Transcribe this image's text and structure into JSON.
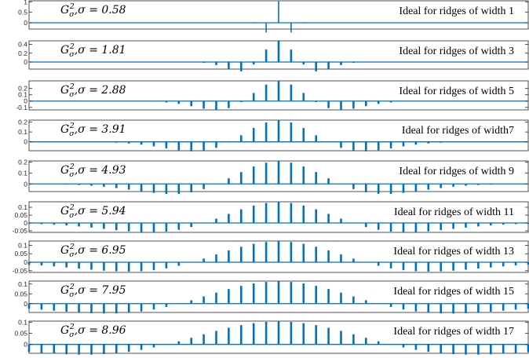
{
  "chart_data": [
    {
      "type": "stem",
      "sigma_label": {
        "symbol": "G",
        "sub": "σ",
        "sup": "2",
        "rest": ",σ = 0.58"
      },
      "annotation": "Ideal for ridges of width 1",
      "sigma": 0.58,
      "x": [
        -20,
        20
      ],
      "ylim": [
        -0.3,
        1.05
      ],
      "yticks": [
        {
          "label": "1",
          "value": 1
        },
        {
          "label": "0.5",
          "value": 0.5
        },
        {
          "label": "0",
          "value": 0
        }
      ],
      "color": "#0072BD"
    },
    {
      "type": "stem",
      "sigma_label": {
        "symbol": "G",
        "sub": "σ",
        "sup": "2",
        "rest": ",σ = 1.81"
      },
      "annotation": "Ideal for ridges of width 3",
      "sigma": 1.81,
      "x": [
        -20,
        20
      ],
      "ylim": [
        -0.16,
        0.48
      ],
      "yticks": [
        {
          "label": "0.4",
          "value": 0.4
        },
        {
          "label": "0.2",
          "value": 0.2
        },
        {
          "label": "0",
          "value": 0
        }
      ],
      "color": "#0072BD"
    },
    {
      "type": "stem",
      "sigma_label": {
        "symbol": "G",
        "sub": "σ",
        "sup": "2",
        "rest": ",σ = 2.88"
      },
      "annotation": "Ideal for ridges of width 5",
      "sigma": 2.88,
      "x": [
        -20,
        20
      ],
      "ylim": [
        -0.14,
        0.32
      ],
      "yticks": [
        {
          "label": "0.2",
          "value": 0.2
        },
        {
          "label": "0.1",
          "value": 0.1
        },
        {
          "label": "0",
          "value": 0
        },
        {
          "label": "-0.1",
          "value": -0.1
        }
      ],
      "color": "#0072BD"
    },
    {
      "type": "stem",
      "sigma_label": {
        "symbol": "G",
        "sub": "σ",
        "sup": "2",
        "rest": ",σ = 3.91"
      },
      "annotation": "Ideal for ridges of width7",
      "sigma": 3.91,
      "x": [
        -20,
        20
      ],
      "ylim": [
        -0.09,
        0.22
      ],
      "yticks": [
        {
          "label": "0.2",
          "value": 0.2
        },
        {
          "label": "0.1",
          "value": 0.1
        },
        {
          "label": "0",
          "value": 0
        }
      ],
      "color": "#0072BD"
    },
    {
      "type": "stem",
      "sigma_label": {
        "symbol": "G",
        "sub": "σ",
        "sup": "2",
        "rest": ",σ = 4.93"
      },
      "annotation": "Ideal for ridges of width 9",
      "sigma": 4.93,
      "x": [
        -20,
        20
      ],
      "ylim": [
        -0.07,
        0.21
      ],
      "yticks": [
        {
          "label": "0.2",
          "value": 0.2
        },
        {
          "label": "0.1",
          "value": 0.1
        },
        {
          "label": "0",
          "value": 0
        }
      ],
      "color": "#0072BD"
    },
    {
      "type": "stem",
      "sigma_label": {
        "symbol": "G",
        "sub": "σ",
        "sup": "2",
        "rest": ",σ = 5.94"
      },
      "annotation": "Ideal for ridges of width 11",
      "sigma": 5.94,
      "x": [
        -20,
        20
      ],
      "ylim": [
        -0.06,
        0.135
      ],
      "yticks": [
        {
          "label": "0.1",
          "value": 0.1
        },
        {
          "label": "0.05",
          "value": 0.05
        },
        {
          "label": "0",
          "value": 0
        },
        {
          "label": "-0.05",
          "value": -0.05
        }
      ],
      "color": "#0072BD"
    },
    {
      "type": "stem",
      "sigma_label": {
        "symbol": "G",
        "sub": "σ",
        "sup": "2",
        "rest": ",σ = 6.95"
      },
      "annotation": "Ideal for ridges of width 13",
      "sigma": 6.95,
      "x": [
        -20,
        20
      ],
      "ylim": [
        -0.06,
        0.125
      ],
      "yticks": [
        {
          "label": "0.1",
          "value": 0.1
        },
        {
          "label": "0.05",
          "value": 0.05
        },
        {
          "label": "0",
          "value": 0
        },
        {
          "label": "-0.05",
          "value": -0.05
        }
      ],
      "color": "#0072BD"
    },
    {
      "type": "stem",
      "sigma_label": {
        "symbol": "G",
        "sub": "σ",
        "sup": "2",
        "rest": ",σ = 7.95"
      },
      "annotation": "Ideal for ridges of width 15",
      "sigma": 7.95,
      "x": [
        -20,
        20
      ],
      "ylim": [
        -0.045,
        0.115
      ],
      "yticks": [
        {
          "label": "0.1",
          "value": 0.1
        },
        {
          "label": "0.05",
          "value": 0.05
        },
        {
          "label": "0",
          "value": 0
        }
      ],
      "color": "#0072BD"
    },
    {
      "type": "stem",
      "sigma_label": {
        "symbol": "G",
        "sub": "σ",
        "sup": "2",
        "rest": ",σ = 8.96"
      },
      "annotation": "Ideal for ridges of width 17",
      "sigma": 8.96,
      "x": [
        -20,
        20
      ],
      "ylim": [
        -0.04,
        0.105
      ],
      "yticks": [
        {
          "label": "0.1",
          "value": 0.1
        },
        {
          "label": "0.05",
          "value": 0.05
        },
        {
          "label": "0",
          "value": 0
        }
      ],
      "color": "#0072BD"
    }
  ]
}
